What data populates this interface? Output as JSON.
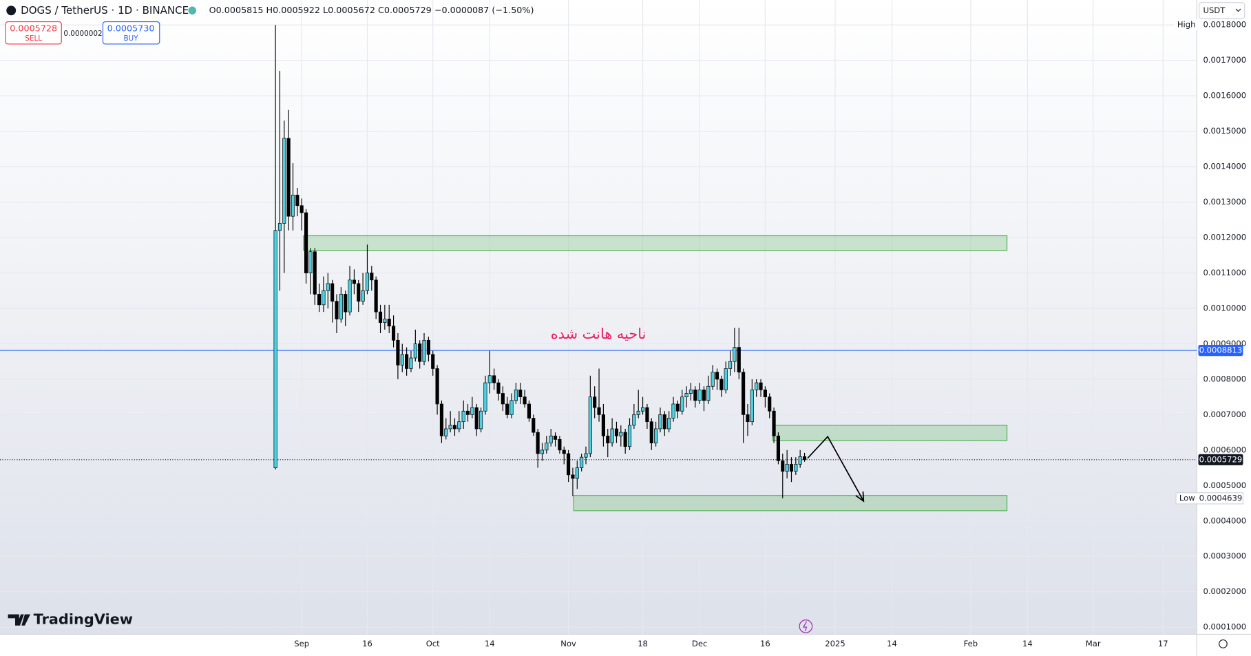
{
  "header": {
    "symbol": "DOGS / TetherUS · 1D · BINANCE",
    "ohlc": "O0.0005815 H0.0005922 L0.0005672 C0.0005729 −0.0000087 (−1.50%)",
    "currency": "USDT"
  },
  "trade": {
    "sell_price": "0.0005728",
    "sell": "SELL",
    "spread": "0.0000002",
    "buy_price": "0.0005730",
    "buy": "BUY"
  },
  "logo": "TradingView",
  "annotation": "ناحیه هانت شده",
  "chart_data": {
    "type": "candlestick",
    "up_color": "#4dd0e1",
    "down_color": "#000000",
    "grid": true,
    "xlim": [
      -69,
      204.7
    ],
    "xticks": [
      {
        "value": 0,
        "label": "Sep"
      },
      {
        "value": 15,
        "label": "16"
      },
      {
        "value": 30,
        "label": "Oct"
      },
      {
        "value": 43,
        "label": "14"
      },
      {
        "value": 61,
        "label": "Nov"
      },
      {
        "value": 78,
        "label": "18"
      },
      {
        "value": 91,
        "label": "Dec"
      },
      {
        "value": 106,
        "label": "16"
      },
      {
        "value": 122,
        "label": "2025"
      },
      {
        "value": 135,
        "label": "14"
      },
      {
        "value": 153,
        "label": "Feb"
      },
      {
        "value": 166,
        "label": "14"
      },
      {
        "value": 181,
        "label": "Mar"
      },
      {
        "value": 197,
        "label": "17"
      }
    ],
    "ylim": [
      8e-05,
      0.00187
    ],
    "yticks": [
      {
        "value": 0.0001,
        "label": "0.0001000"
      },
      {
        "value": 0.0002,
        "label": "0.0002000"
      },
      {
        "value": 0.0003,
        "label": "0.0003000"
      },
      {
        "value": 0.0004,
        "label": "0.0004000"
      },
      {
        "value": 0.0005,
        "label": "0.0005000"
      },
      {
        "value": 0.0006,
        "label": "0.0006000"
      },
      {
        "value": 0.0007,
        "label": "0.0007000"
      },
      {
        "value": 0.0008,
        "label": "0.0008000"
      },
      {
        "value": 0.0009,
        "label": "0.0009000"
      },
      {
        "value": 0.001,
        "label": "0.0010000"
      },
      {
        "value": 0.0011,
        "label": "0.0011000"
      },
      {
        "value": 0.0012,
        "label": "0.0012000"
      },
      {
        "value": 0.0013,
        "label": "0.0013000"
      },
      {
        "value": 0.0014,
        "label": "0.0014000"
      },
      {
        "value": 0.0015,
        "label": "0.0015000"
      },
      {
        "value": 0.0016,
        "label": "0.0016000"
      },
      {
        "value": 0.0017,
        "label": "0.0017000"
      },
      {
        "value": 0.0018,
        "label": "0.0018000"
      }
    ],
    "x": [
      -6,
      -5,
      -4,
      -3,
      -2,
      -1,
      0,
      1,
      2,
      3,
      4,
      5,
      6,
      7,
      8,
      9,
      10,
      11,
      12,
      13,
      14,
      15,
      16,
      17,
      18,
      19,
      20,
      21,
      22,
      23,
      24,
      25,
      26,
      27,
      28,
      29,
      30,
      31,
      32,
      33,
      34,
      35,
      36,
      37,
      38,
      39,
      40,
      41,
      42,
      43,
      44,
      45,
      46,
      47,
      48,
      49,
      50,
      51,
      52,
      53,
      54,
      55,
      56,
      57,
      58,
      59,
      60,
      61,
      62,
      63,
      64,
      65,
      66,
      67,
      68,
      69,
      70,
      71,
      72,
      73,
      74,
      75,
      76,
      77,
      78,
      79,
      80,
      81,
      82,
      83,
      84,
      85,
      86,
      87,
      88,
      89,
      90,
      91,
      92,
      93,
      94,
      95,
      96,
      97,
      98,
      99,
      100,
      101,
      102,
      103,
      104,
      105,
      106,
      107,
      108,
      109,
      110,
      111,
      112,
      113,
      114,
      115
    ],
    "ohlc": [
      [
        0.00055,
        0.0018,
        0.000545,
        0.00122
      ],
      [
        0.00122,
        0.00167,
        0.00105,
        0.00124
      ],
      [
        0.00124,
        0.00153,
        0.0011,
        0.00148
      ],
      [
        0.00148,
        0.00156,
        0.00122,
        0.00126
      ],
      [
        0.00126,
        0.00141,
        0.00122,
        0.00132
      ],
      [
        0.00132,
        0.00134,
        0.00126,
        0.00129
      ],
      [
        0.00129,
        0.00131,
        0.00122,
        0.00127
      ],
      [
        0.00127,
        0.00128,
        0.00107,
        0.0011
      ],
      [
        0.0011,
        0.00117,
        0.00104,
        0.00116
      ],
      [
        0.00116,
        0.00117,
        0.00101,
        0.00104
      ],
      [
        0.00104,
        0.00107,
        0.00099,
        0.00101
      ],
      [
        0.00101,
        0.00109,
        0.00099,
        0.00105
      ],
      [
        0.00105,
        0.0011,
        0.001,
        0.00107
      ],
      [
        0.00107,
        0.00108,
        0.00096,
        0.00102
      ],
      [
        0.00102,
        0.00104,
        0.00093,
        0.00097
      ],
      [
        0.00097,
        0.00106,
        0.00096,
        0.00104
      ],
      [
        0.00104,
        0.00105,
        0.00095,
        0.00099
      ],
      [
        0.00099,
        0.00112,
        0.00098,
        0.00108
      ],
      [
        0.00108,
        0.00111,
        0.00104,
        0.00107
      ],
      [
        0.00107,
        0.00108,
        0.00099,
        0.00102
      ],
      [
        0.00102,
        0.0011,
        0.00101,
        0.00105
      ],
      [
        0.00105,
        0.00118,
        0.00104,
        0.0011
      ],
      [
        0.0011,
        0.00112,
        0.00105,
        0.00108
      ],
      [
        0.00108,
        0.00109,
        0.00097,
        0.00099
      ],
      [
        0.00099,
        0.00101,
        0.00093,
        0.00096
      ],
      [
        0.00096,
        0.00101,
        0.00094,
        0.00097
      ],
      [
        0.00097,
        0.00101,
        0.00093,
        0.00095
      ],
      [
        0.00095,
        0.00098,
        0.00089,
        0.00091
      ],
      [
        0.00091,
        0.00093,
        0.0008,
        0.00084
      ],
      [
        0.00084,
        0.0009,
        0.00082,
        0.00087
      ],
      [
        0.00087,
        0.00089,
        0.00081,
        0.00083
      ],
      [
        0.00083,
        0.00088,
        0.00082,
        0.00086
      ],
      [
        0.00086,
        0.00094,
        0.00085,
        0.0009
      ],
      [
        0.0009,
        0.00091,
        0.00083,
        0.00085
      ],
      [
        0.00085,
        0.00093,
        0.00084,
        0.00091
      ],
      [
        0.00091,
        0.00092,
        0.00085,
        0.00087
      ],
      [
        0.00087,
        0.00088,
        0.00081,
        0.00083
      ],
      [
        0.00083,
        0.00084,
        0.0007,
        0.00073
      ],
      [
        0.00073,
        0.00074,
        0.00062,
        0.00064
      ],
      [
        0.00064,
        0.00069,
        0.00063,
        0.00066
      ],
      [
        0.00066,
        0.00071,
        0.00065,
        0.00067
      ],
      [
        0.00067,
        0.00069,
        0.00064,
        0.00066
      ],
      [
        0.00066,
        0.00071,
        0.00065,
        0.00068
      ],
      [
        0.00068,
        0.00074,
        0.00066,
        0.00071
      ],
      [
        0.00071,
        0.00073,
        0.00068,
        0.0007
      ],
      [
        0.0007,
        0.00075,
        0.00069,
        0.00072
      ],
      [
        0.00072,
        0.00073,
        0.00064,
        0.00066
      ],
      [
        0.00066,
        0.00072,
        0.00065,
        0.00071
      ],
      [
        0.00071,
        0.00081,
        0.0007,
        0.00079
      ],
      [
        0.00079,
        0.00088,
        0.00076,
        0.00081
      ],
      [
        0.00081,
        0.00083,
        0.00077,
        0.00079
      ],
      [
        0.00079,
        0.0008,
        0.00074,
        0.00076
      ],
      [
        0.00076,
        0.00078,
        0.00071,
        0.00073
      ],
      [
        0.00073,
        0.00075,
        0.00069,
        0.0007
      ],
      [
        0.0007,
        0.00076,
        0.00069,
        0.00074
      ],
      [
        0.00074,
        0.00079,
        0.00073,
        0.00077
      ],
      [
        0.00077,
        0.00079,
        0.00073,
        0.00075
      ],
      [
        0.00075,
        0.00077,
        0.00072,
        0.00073
      ],
      [
        0.00073,
        0.00074,
        0.00068,
        0.00069
      ],
      [
        0.00069,
        0.0007,
        0.00064,
        0.00065
      ],
      [
        0.00065,
        0.00066,
        0.00055,
        0.00059
      ],
      [
        0.00059,
        0.00062,
        0.00057,
        0.0006
      ],
      [
        0.0006,
        0.00064,
        0.00059,
        0.00062
      ],
      [
        0.00062,
        0.00066,
        0.00061,
        0.00064
      ],
      [
        0.00064,
        0.00065,
        0.00061,
        0.00063
      ],
      [
        0.00063,
        0.00064,
        0.00059,
        0.0006
      ],
      [
        0.0006,
        0.00061,
        0.00056,
        0.00059
      ],
      [
        0.00059,
        0.0006,
        0.00051,
        0.00053
      ],
      [
        0.00053,
        0.00055,
        0.00047,
        0.00052
      ],
      [
        0.00052,
        0.00057,
        0.00049,
        0.00055
      ],
      [
        0.00055,
        0.00059,
        0.00054,
        0.00058
      ],
      [
        0.00058,
        0.00061,
        0.00056,
        0.00059
      ],
      [
        0.00059,
        0.00081,
        0.00058,
        0.00075
      ],
      [
        0.00075,
        0.00078,
        0.00069,
        0.00072
      ],
      [
        0.00072,
        0.00083,
        0.00068,
        0.0007
      ],
      [
        0.0007,
        0.00073,
        0.00061,
        0.00064
      ],
      [
        0.00064,
        0.00066,
        0.00058,
        0.00062
      ],
      [
        0.00062,
        0.00069,
        0.00061,
        0.00066
      ],
      [
        0.00066,
        0.00068,
        0.00062,
        0.00064
      ],
      [
        0.00064,
        0.00067,
        0.00061,
        0.00065
      ],
      [
        0.00065,
        0.00066,
        0.00059,
        0.00061
      ],
      [
        0.00061,
        0.00069,
        0.0006,
        0.00067
      ],
      [
        0.00067,
        0.00073,
        0.00066,
        0.0007
      ],
      [
        0.0007,
        0.00077,
        0.00069,
        0.00071
      ],
      [
        0.00071,
        0.00075,
        0.0007,
        0.00072
      ],
      [
        0.00072,
        0.00073,
        0.00066,
        0.00068
      ],
      [
        0.00068,
        0.00069,
        0.0006,
        0.00062
      ],
      [
        0.00062,
        0.00068,
        0.00061,
        0.00066
      ],
      [
        0.00066,
        0.00072,
        0.00065,
        0.0007
      ],
      [
        0.0007,
        0.00071,
        0.00064,
        0.00066
      ],
      [
        0.00066,
        0.00071,
        0.00065,
        0.00069
      ],
      [
        0.00069,
        0.00075,
        0.00068,
        0.00073
      ],
      [
        0.00073,
        0.00074,
        0.00069,
        0.00071
      ],
      [
        0.00071,
        0.00077,
        0.0007,
        0.00075
      ],
      [
        0.00075,
        0.00078,
        0.00072,
        0.00076
      ],
      [
        0.00076,
        0.00079,
        0.00074,
        0.00077
      ],
      [
        0.00077,
        0.00078,
        0.00072,
        0.00074
      ],
      [
        0.00074,
        0.00079,
        0.00073,
        0.00077
      ],
      [
        0.00077,
        0.00078,
        0.00071,
        0.00074
      ],
      [
        0.00074,
        0.00081,
        0.00073,
        0.00078
      ],
      [
        0.00078,
        0.00084,
        0.00077,
        0.00082
      ],
      [
        0.00082,
        0.00083,
        0.00077,
        0.0008
      ],
      [
        0.0008,
        0.00081,
        0.00075,
        0.00077
      ],
      [
        0.00077,
        0.00085,
        0.00076,
        0.00083
      ],
      [
        0.00083,
        0.00088,
        0.00081,
        0.00085
      ],
      [
        0.00085,
        0.000945,
        0.00082,
        0.00089
      ],
      [
        0.00089,
        0.000945,
        0.0008,
        0.00082
      ],
      [
        0.00082,
        0.00083,
        0.00062,
        0.0007
      ],
      [
        0.0007,
        0.00073,
        0.00064,
        0.00068
      ],
      [
        0.00068,
        0.0008,
        0.00067,
        0.00077
      ],
      [
        0.00077,
        0.0008,
        0.00075,
        0.00079
      ],
      [
        0.00079,
        0.0008,
        0.00075,
        0.00077
      ],
      [
        0.00077,
        0.00078,
        0.00072,
        0.00075
      ],
      [
        0.00075,
        0.00076,
        0.00069,
        0.00071
      ],
      [
        0.00071,
        0.00072,
        0.00062,
        0.00064
      ],
      [
        0.00064,
        0.00065,
        0.00056,
        0.00057
      ],
      [
        0.00057,
        0.00059,
        0.0004639,
        0.00054
      ],
      [
        0.00054,
        0.0006,
        0.00052,
        0.00056
      ],
      [
        0.00056,
        0.00058,
        0.00051,
        0.00054
      ],
      [
        0.00054,
        0.00058,
        0.00053,
        0.00056
      ],
      [
        0.00056,
        0.0006,
        0.00055,
        0.0005815
      ],
      [
        0.0005815,
        0.0005922,
        0.0005672,
        0.0005729
      ]
    ],
    "zones": [
      {
        "x": [
          0.4,
          161.3
        ],
        "y": [
          0.001164,
          0.001205
        ]
      },
      {
        "x": [
          107.7,
          161.3
        ],
        "y": [
          0.000627,
          0.00067
        ]
      },
      {
        "x": [
          62.2,
          161.3
        ],
        "y": [
          0.000429,
          0.000472
        ]
      }
    ],
    "zone_color": "#4caf50",
    "arrow": {
      "x": [
        115.7,
        120.3,
        128.5
      ],
      "y": [
        0.000577,
        0.000638,
        0.000456
      ]
    },
    "price_lines": [
      {
        "value": 0.0008813,
        "label": "0.0008813",
        "color": "#2962ff",
        "style": "solid"
      },
      {
        "value": 0.0005729,
        "label": "0.0005729",
        "color": "#131722",
        "style": "dotted"
      }
    ],
    "high_marker": {
      "label": "High",
      "value": 0.0018
    },
    "low_marker": {
      "label": "Low",
      "value": 0.0004639,
      "value_label": "0.0004639"
    }
  }
}
